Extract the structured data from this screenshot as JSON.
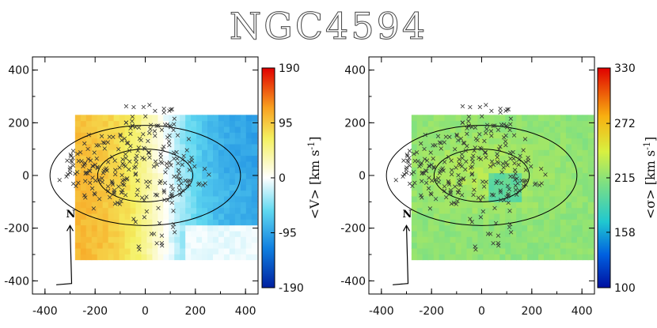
{
  "chart_data": [
    {
      "type": "heatmap",
      "title": "NGC4594",
      "xlim": [
        -450,
        450
      ],
      "ylim": [
        -450,
        450
      ],
      "x_ticks": [
        -400,
        -200,
        0,
        200,
        400
      ],
      "y_ticks": [
        -400,
        -200,
        0,
        200,
        400
      ],
      "colorbar": {
        "label": "<V> [km s",
        "label_sup": "-1",
        "label_end": "]",
        "min": -190,
        "max": 190,
        "ticks": [
          190,
          95,
          0,
          -95,
          -190
        ]
      },
      "field": {
        "x_range": [
          -280,
          440
        ],
        "y_range": [
          -320,
          220
        ],
        "kind": "rotation"
      },
      "north_label": "N",
      "ellipses": [
        {
          "cx": 0,
          "cy": 0,
          "rx": 380,
          "ry": 190
        },
        {
          "cx": 0,
          "cy": 0,
          "rx": 190,
          "ry": 100
        }
      ],
      "markers": "x"
    },
    {
      "type": "heatmap",
      "title": "",
      "xlim": [
        -450,
        450
      ],
      "ylim": [
        -450,
        450
      ],
      "x_ticks": [
        -400,
        -200,
        0,
        200,
        400
      ],
      "y_ticks": [
        -400,
        -200,
        0,
        200,
        400
      ],
      "colorbar": {
        "label": "<σ> [km s",
        "label_sup": "-1",
        "label_end": "]",
        "min": 100,
        "max": 330,
        "ticks": [
          330,
          272,
          215,
          158,
          100
        ]
      },
      "field": {
        "x_range": [
          -280,
          440
        ],
        "y_range": [
          -320,
          220
        ],
        "kind": "dispersion"
      },
      "north_label": "N",
      "ellipses": [
        {
          "cx": 0,
          "cy": 0,
          "rx": 380,
          "ry": 190
        },
        {
          "cx": 0,
          "cy": 0,
          "rx": 190,
          "ry": 100
        }
      ],
      "markers": "x"
    }
  ]
}
